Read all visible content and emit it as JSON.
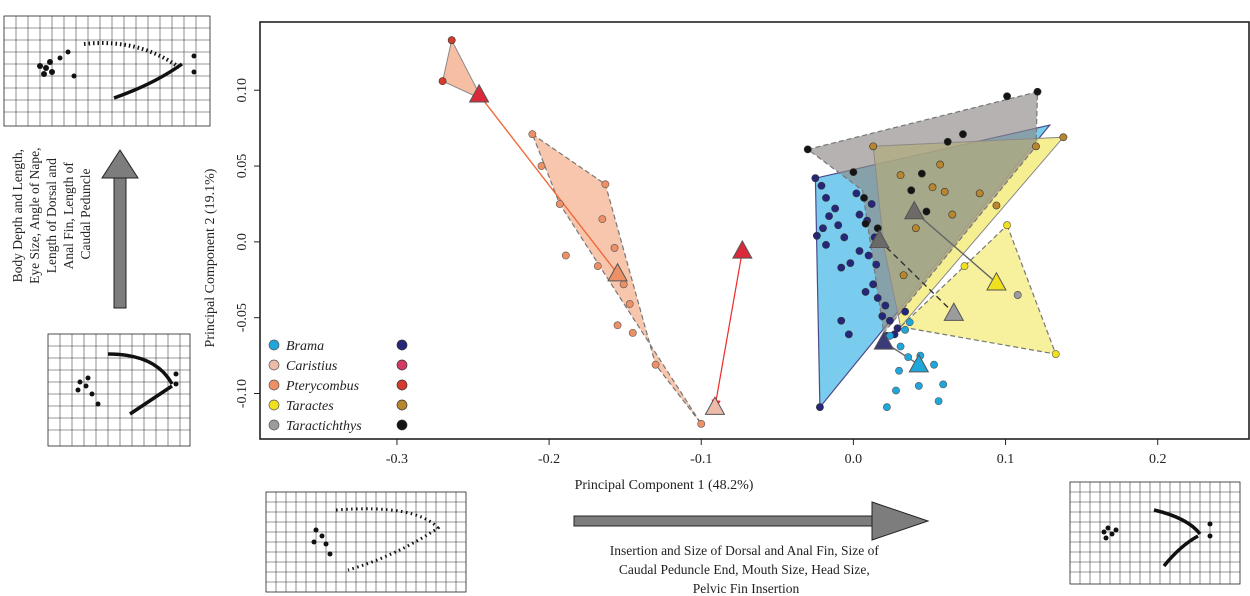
{
  "chart_data": {
    "type": "scatter",
    "title": "",
    "xlabel": "Principal Component 1 (48.2%)",
    "ylabel": "Principal Component 2 (19.1%)",
    "xlim": [
      -0.39,
      0.26
    ],
    "ylim": [
      -0.13,
      0.145
    ],
    "xticks": [
      -0.3,
      -0.2,
      -0.1,
      0.0,
      0.1,
      0.2
    ],
    "xtick_labels": [
      "-0.3",
      "-0.2",
      "-0.1",
      "0.0",
      "0.1",
      "0.2"
    ],
    "yticks": [
      -0.1,
      -0.05,
      0.0,
      0.05,
      0.1
    ],
    "ytick_labels": [
      "-0.10",
      "-0.05",
      "0.0",
      "0.05",
      "0.10"
    ],
    "grid": false,
    "legend_position": "bottom-left",
    "legend_title": "",
    "series": [
      {
        "name": "Brama",
        "color": "#1fa7dc",
        "extant_color": "#26277a",
        "hull_color": "#45b8e6",
        "fossil_color": "#f2f2f2",
        "points": [
          [
            0.037,
            -0.053
          ],
          [
            0.034,
            -0.058
          ],
          [
            0.024,
            -0.062
          ],
          [
            0.031,
            -0.069
          ],
          [
            0.036,
            -0.076
          ],
          [
            0.044,
            -0.075
          ],
          [
            0.053,
            -0.081
          ],
          [
            0.059,
            -0.094
          ],
          [
            0.056,
            -0.105
          ],
          [
            0.043,
            -0.095
          ],
          [
            0.022,
            -0.109
          ],
          [
            0.028,
            -0.098
          ],
          [
            0.03,
            -0.085
          ]
        ],
        "extant_points": [
          [
            -0.022,
            -0.109
          ],
          [
            -0.025,
            0.042
          ],
          [
            -0.021,
            0.037
          ],
          [
            -0.018,
            0.029
          ],
          [
            -0.016,
            0.017
          ],
          [
            -0.02,
            0.009
          ],
          [
            -0.024,
            0.004
          ],
          [
            -0.018,
            -0.002
          ],
          [
            -0.012,
            0.022
          ],
          [
            -0.01,
            0.011
          ],
          [
            -0.006,
            0.003
          ],
          [
            -0.008,
            -0.017
          ],
          [
            -0.002,
            -0.014
          ],
          [
            0.004,
            -0.006
          ],
          [
            0.002,
            0.032
          ],
          [
            0.004,
            0.018
          ],
          [
            0.009,
            0.014
          ],
          [
            0.012,
            0.025
          ],
          [
            0.014,
            0.003
          ],
          [
            0.01,
            -0.009
          ],
          [
            0.015,
            -0.015
          ],
          [
            0.013,
            -0.028
          ],
          [
            0.008,
            -0.033
          ],
          [
            0.016,
            -0.037
          ],
          [
            0.021,
            -0.042
          ],
          [
            0.019,
            -0.049
          ],
          [
            0.024,
            -0.052
          ],
          [
            0.029,
            -0.057
          ],
          [
            0.022,
            -0.062
          ],
          [
            -0.003,
            -0.061
          ],
          [
            -0.008,
            -0.052
          ],
          [
            0.027,
            -0.061
          ],
          [
            0.034,
            -0.046
          ]
        ],
        "hull": [
          [
            -0.022,
            -0.109
          ],
          [
            0.129,
            0.077
          ],
          [
            -0.025,
            0.042
          ]
        ],
        "mean": [
          0.043,
          -0.081
        ],
        "fossil_mean": [
          0.02,
          -0.066
        ]
      },
      {
        "name": "Caristius",
        "color": "#ecbbaa",
        "extant_color": "#d43a64",
        "points": [
          [
            -0.091,
            -0.111
          ]
        ],
        "extant_points": [],
        "hull": [],
        "mean": [
          -0.091,
          -0.109
        ],
        "fossil_mean": [
          -0.073,
          -0.006
        ]
      },
      {
        "name": "Pterycombus",
        "color": "#ee9065",
        "extant_color": "#d43b2c",
        "hull_color": "#f3a883",
        "points": [
          [
            -0.211,
            0.071
          ],
          [
            -0.205,
            0.05
          ],
          [
            -0.163,
            0.038
          ],
          [
            -0.193,
            0.025
          ],
          [
            -0.165,
            0.015
          ],
          [
            -0.157,
            -0.004
          ],
          [
            -0.189,
            -0.009
          ],
          [
            -0.168,
            -0.016
          ],
          [
            -0.151,
            -0.028
          ],
          [
            -0.155,
            -0.055
          ],
          [
            -0.145,
            -0.06
          ],
          [
            -0.13,
            -0.081
          ],
          [
            -0.1,
            -0.12
          ],
          [
            -0.147,
            -0.041
          ]
        ],
        "extant_points": [
          [
            -0.27,
            0.106
          ],
          [
            -0.264,
            0.133
          ]
        ],
        "hull": [
          [
            -0.211,
            0.071
          ],
          [
            -0.163,
            0.038
          ],
          [
            -0.13,
            -0.081
          ],
          [
            -0.1,
            -0.12
          ],
          [
            -0.193,
            0.025
          ]
        ],
        "hull_extant": [
          [
            -0.264,
            0.133
          ],
          [
            -0.27,
            0.106
          ],
          [
            -0.244,
            0.094
          ]
        ],
        "mean": [
          -0.155,
          -0.021
        ],
        "fossil_mean": [
          -0.246,
          0.097
        ]
      },
      {
        "name": "Taractes",
        "color": "#f0e01d",
        "extant_color": "#b8862e",
        "hull_color": "#f3ea6c",
        "points": [
          [
            0.101,
            0.011
          ],
          [
            0.133,
            -0.074
          ],
          [
            0.108,
            -0.035
          ],
          [
            0.073,
            -0.016
          ]
        ],
        "extant_points": [
          [
            0.138,
            0.069
          ],
          [
            0.013,
            0.063
          ],
          [
            0.031,
            0.044
          ],
          [
            0.052,
            0.036
          ],
          [
            0.06,
            0.033
          ],
          [
            0.057,
            0.051
          ],
          [
            0.065,
            0.018
          ],
          [
            0.083,
            0.032
          ],
          [
            0.094,
            0.024
          ],
          [
            0.12,
            0.063
          ],
          [
            0.041,
            0.009
          ],
          [
            0.033,
            -0.022
          ]
        ],
        "hull": [
          [
            0.101,
            0.011
          ],
          [
            0.133,
            -0.074
          ],
          [
            0.031,
            -0.056
          ],
          [
            0.073,
            -0.016
          ]
        ],
        "hull_extant": [
          [
            0.013,
            0.063
          ],
          [
            0.138,
            0.069
          ],
          [
            0.031,
            -0.056
          ],
          [
            0.02,
            -0.003
          ]
        ],
        "mean": [
          0.094,
          -0.027
        ],
        "fossil_mean": [
          0.04,
          0.02
        ]
      },
      {
        "name": "Taractichthys",
        "color": "#9c9c9c",
        "extant_color": "#141414",
        "hull_color": "#8e8a88",
        "points": [
          [
            0.108,
            -0.035
          ]
        ],
        "extant_points": [
          [
            -0.03,
            0.061
          ],
          [
            0.101,
            0.096
          ],
          [
            0.121,
            0.099
          ],
          [
            0.072,
            0.071
          ],
          [
            0.062,
            0.066
          ],
          [
            0.0,
            0.046
          ],
          [
            0.007,
            0.029
          ],
          [
            0.008,
            0.012
          ],
          [
            0.016,
            0.009
          ],
          [
            0.038,
            0.034
          ],
          [
            0.048,
            0.02
          ],
          [
            0.045,
            0.045
          ]
        ],
        "hull": [
          [
            -0.03,
            0.061
          ],
          [
            0.121,
            0.099
          ],
          [
            0.12,
            0.063
          ],
          [
            0.02,
            -0.06
          ],
          [
            0.006,
            0.034
          ]
        ],
        "mean": [
          0.066,
          -0.047
        ],
        "fossil_mean": [
          0.017,
          0.001
        ]
      }
    ]
  },
  "panel": {
    "upper_axis_note": [
      "Body Depth and Length,",
      "Eye Size, Angle  of Nape,",
      "Length of Dorsal and",
      "Anal Fin, Length of",
      "Caudal Peduncle"
    ],
    "lower_axis_note": [
      "Insertion and Size of Dorsal and Anal Fin, Size of",
      "Caudal Peduncle End, Mouth Size, Head Size,",
      "Pelvic Fin Insertion"
    ]
  }
}
